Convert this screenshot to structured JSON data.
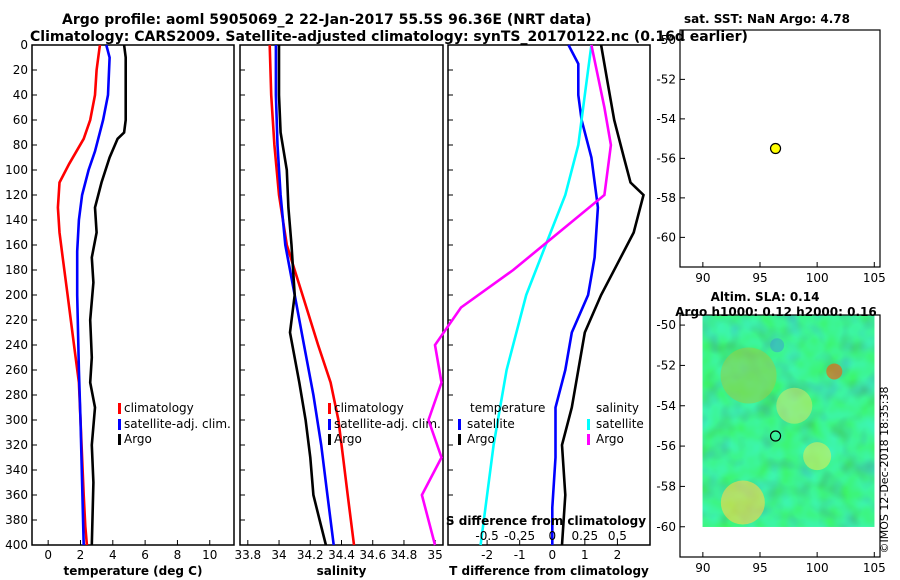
{
  "header": {
    "title_line1": "Argo profile: aoml 5905069_2 22-Jan-2017 55.5S 96.36E (NRT data)",
    "title_line2": "Climatology: CARS2009. Satellite-adjusted climatology: synTS_20170122.nc (0.16d earlier)"
  },
  "colors": {
    "climatology": "#ff0000",
    "satellite": "#0000ff",
    "argo": "#000000",
    "sat_salinity": "#00ffff",
    "clim_salinity": "#ff00ff",
    "marker": "#ffff00"
  },
  "chart_data": [
    {
      "type": "line",
      "id": "temperature",
      "xlabel": "temperature (deg C)",
      "ylabel": "depth",
      "xlim": [
        -1,
        11.5
      ],
      "ylim": [
        400,
        0
      ],
      "xticks": [
        0,
        2,
        4,
        6,
        8,
        10
      ],
      "yticks": [
        0,
        20,
        40,
        60,
        80,
        100,
        120,
        140,
        160,
        180,
        200,
        220,
        240,
        260,
        280,
        300,
        320,
        340,
        360,
        380,
        400
      ],
      "series": [
        {
          "name": "climatology",
          "color": "#ff0000",
          "x": [
            3.2,
            3.0,
            2.9,
            2.6,
            2.2,
            1.3,
            0.7,
            0.6,
            0.7,
            0.9,
            1.2,
            1.6,
            1.9,
            2.0,
            2.1,
            2.2,
            2.3,
            2.4
          ],
          "y": [
            0,
            20,
            40,
            60,
            75,
            95,
            110,
            130,
            150,
            170,
            200,
            240,
            270,
            300,
            330,
            360,
            385,
            400
          ]
        },
        {
          "name": "satellite-adj. clim.",
          "color": "#0000ff",
          "x": [
            3.6,
            3.8,
            3.7,
            3.4,
            2.9,
            2.5,
            2.1,
            1.9,
            1.8,
            1.8,
            1.9,
            2.0,
            2.1,
            2.2
          ],
          "y": [
            0,
            10,
            40,
            60,
            85,
            100,
            120,
            140,
            165,
            200,
            260,
            300,
            350,
            400
          ]
        },
        {
          "name": "Argo",
          "color": "#000000",
          "x": [
            4.7,
            4.8,
            4.8,
            4.8,
            4.7,
            4.3,
            3.8,
            3.3,
            2.9,
            3.0,
            2.7,
            2.8,
            2.6,
            2.7,
            2.6,
            2.9,
            2.7,
            2.8,
            2.7
          ],
          "y": [
            0,
            10,
            40,
            60,
            70,
            75,
            90,
            110,
            130,
            150,
            170,
            190,
            220,
            250,
            270,
            290,
            320,
            350,
            400
          ]
        }
      ],
      "legend": [
        "climatology",
        "satellite-adj. clim.",
        "Argo"
      ]
    },
    {
      "type": "line",
      "id": "salinity",
      "xlabel": "salinity",
      "xlim": [
        33.75,
        35.05
      ],
      "ylim": [
        400,
        0
      ],
      "xticks": [
        33.8,
        34,
        34.2,
        34.4,
        34.6,
        34.8,
        35
      ],
      "xtick_labels": [
        "33.8",
        "34",
        "34.2",
        "34.4",
        "34.6",
        "34.8",
        "35"
      ],
      "series": [
        {
          "name": "climatology",
          "color": "#ff0000",
          "x": [
            33.94,
            33.95,
            33.97,
            34.0,
            34.05,
            34.15,
            34.25,
            34.33,
            34.38,
            34.41,
            34.44,
            34.48
          ],
          "y": [
            0,
            40,
            80,
            120,
            160,
            200,
            240,
            270,
            300,
            330,
            360,
            400
          ]
        },
        {
          "name": "satellite-adj. clim.",
          "color": "#0000ff",
          "x": [
            33.98,
            33.98,
            33.99,
            34.01,
            34.04,
            34.1,
            34.16,
            34.22,
            34.27,
            34.31,
            34.35
          ],
          "y": [
            0,
            40,
            80,
            120,
            160,
            200,
            240,
            280,
            320,
            360,
            400
          ]
        },
        {
          "name": "Argo",
          "color": "#000000",
          "x": [
            34.0,
            34.0,
            34.01,
            34.05,
            34.06,
            34.08,
            34.1,
            34.07,
            34.13,
            34.17,
            34.2,
            34.22,
            34.26,
            34.3
          ],
          "y": [
            0,
            40,
            70,
            100,
            130,
            160,
            200,
            230,
            270,
            300,
            330,
            360,
            380,
            400
          ]
        }
      ],
      "legend": [
        "climatology",
        "satellite-adj. clim.",
        "Argo"
      ]
    },
    {
      "type": "line",
      "id": "differences",
      "xlabel": "T difference from climatology",
      "top_label": "S difference from climatology",
      "xlim": [
        -3.2,
        3.0
      ],
      "ylim": [
        400,
        0
      ],
      "xticks": [
        -2,
        -1,
        0,
        1,
        2
      ],
      "s_ticks": [
        -0.5,
        -0.25,
        0,
        0.25,
        0.5
      ],
      "s_tick_labels": [
        "-0.5",
        "-0.25",
        "0",
        "0.25",
        "0.5"
      ],
      "series": [
        {
          "name": "T satellite",
          "color": "#0000ff",
          "x": [
            0.5,
            0.8,
            0.8,
            0.9,
            1.2,
            1.4,
            1.3,
            1.1,
            0.6,
            0.4,
            0.1,
            0.1,
            0.0,
            0.0
          ],
          "y": [
            0,
            15,
            40,
            60,
            90,
            130,
            170,
            200,
            230,
            260,
            290,
            330,
            370,
            400
          ]
        },
        {
          "name": "T Argo",
          "color": "#000000",
          "x": [
            1.5,
            1.7,
            1.9,
            2.2,
            2.4,
            2.8,
            2.5,
            2.0,
            1.5,
            1.0,
            0.8,
            0.6,
            0.3,
            0.4,
            0.3
          ],
          "y": [
            0,
            30,
            60,
            90,
            110,
            120,
            150,
            175,
            200,
            230,
            260,
            290,
            320,
            360,
            400
          ]
        },
        {
          "name": "S satellite",
          "color": "#00ffff",
          "x": [
            0.3,
            0.25,
            0.2,
            0.1,
            -0.05,
            -0.2,
            -0.35,
            -0.45,
            -0.55
          ],
          "y": [
            0,
            40,
            80,
            120,
            160,
            200,
            260,
            320,
            400
          ]
        },
        {
          "name": "S Argo",
          "color": "#ff00ff",
          "x": [
            0.3,
            0.4,
            0.45,
            0.4,
            0.05,
            -0.3,
            -0.7,
            -0.9,
            -0.85,
            -0.95,
            -0.85,
            -1.0,
            -0.9
          ],
          "y": [
            0,
            50,
            80,
            120,
            150,
            180,
            210,
            240,
            270,
            300,
            330,
            360,
            400
          ]
        }
      ],
      "legend_temperature_title": "temperature",
      "legend_temperature": [
        "satellite",
        "Argo"
      ],
      "legend_salinity_title": "salinity",
      "legend_salinity": [
        "satellite",
        "Argo"
      ]
    },
    {
      "type": "scatter",
      "id": "sst_map",
      "title": "sat. SST: NaN Argo: 4.78",
      "xlim": [
        88,
        105.5
      ],
      "ylim": [
        -61.5,
        -49.5
      ],
      "xticks": [
        90,
        95,
        100,
        105
      ],
      "yticks": [
        -50,
        -52,
        -54,
        -56,
        -58,
        -60
      ],
      "points": [
        {
          "x": 96.36,
          "y": -55.5
        }
      ]
    },
    {
      "type": "heatmap",
      "id": "sla_map",
      "title_line1": "Altim. SLA: 0.14",
      "title_line2": "Argo h1000: 0.12 h2000: 0.16",
      "xlim": [
        88,
        105.5
      ],
      "ylim": [
        -61.5,
        -49.5
      ],
      "xticks": [
        90,
        95,
        100,
        105
      ],
      "yticks": [
        -50,
        -52,
        -54,
        -56,
        -58,
        -60
      ],
      "points": [
        {
          "x": 96.36,
          "y": -55.5
        }
      ]
    }
  ],
  "credit": "©IMOS 12-Dec-2018 18:35:38"
}
